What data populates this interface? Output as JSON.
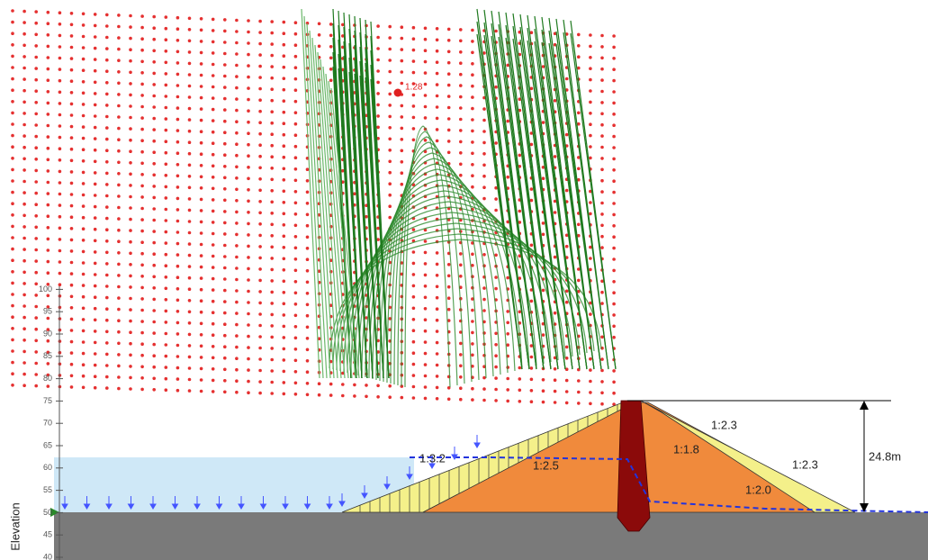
{
  "axis": {
    "label": "Elevation",
    "ticks": [
      "40",
      "45",
      "50",
      "55",
      "60",
      "65",
      "70",
      "75",
      "80",
      "85",
      "90",
      "95",
      "100"
    ]
  },
  "critical": {
    "label": "1.28"
  },
  "annotations": [
    "1:3.2",
    "1:2.5",
    "1:1.8",
    "1:2.3",
    "1:2.3",
    "1:2.0",
    "24.8m"
  ]
}
